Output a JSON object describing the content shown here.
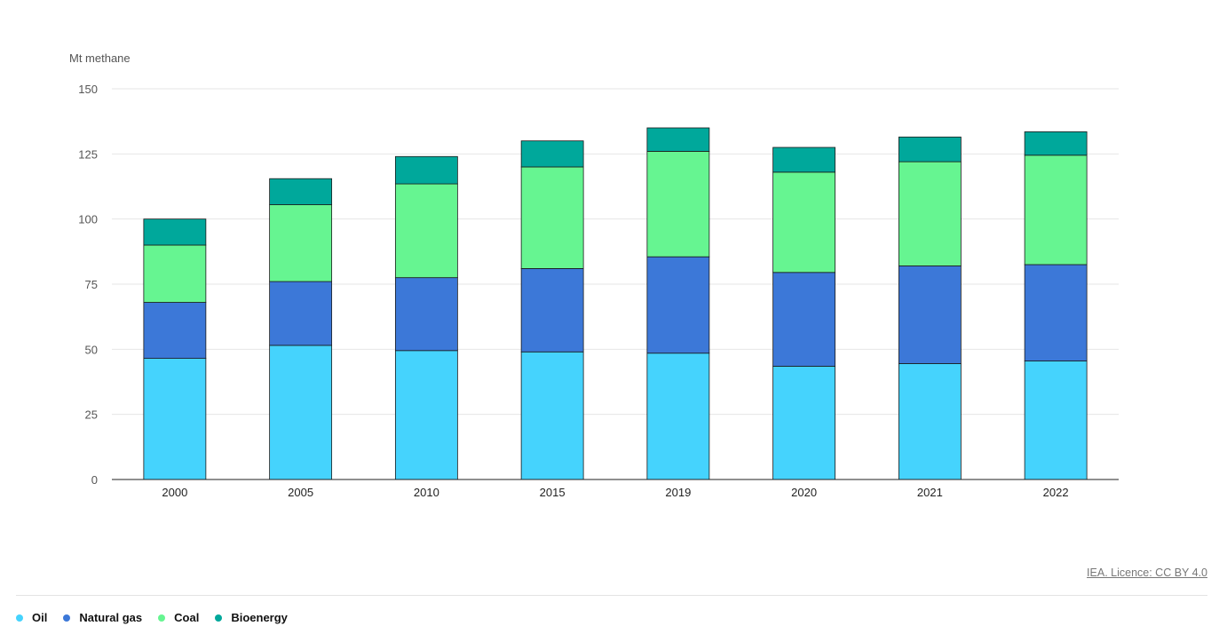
{
  "source": "IEA. Licence: CC BY 4.0",
  "chart_data": {
    "type": "bar",
    "stacked": true,
    "title": "",
    "ylabel": "Mt methane",
    "xlabel": "",
    "ylim": [
      0,
      150
    ],
    "yticks": [
      0,
      25,
      50,
      75,
      100,
      125,
      150
    ],
    "grid": true,
    "legend_position": "bottom-left",
    "categories": [
      "2000",
      "2005",
      "2010",
      "2015",
      "2019",
      "2020",
      "2021",
      "2022"
    ],
    "series": [
      {
        "name": "Oil",
        "color": "#45d3fd",
        "values": [
          46.5,
          51.5,
          49.5,
          49,
          48.5,
          43.5,
          44.5,
          45.5
        ]
      },
      {
        "name": "Natural gas",
        "color": "#3c78d8",
        "values": [
          21.5,
          24.5,
          28,
          32,
          37,
          36,
          37.5,
          37
        ]
      },
      {
        "name": "Coal",
        "color": "#66f591",
        "values": [
          22,
          29.5,
          36,
          39,
          40.5,
          38.5,
          40,
          42
        ]
      },
      {
        "name": "Bioenergy",
        "color": "#00a89b",
        "values": [
          10,
          10,
          10.5,
          10,
          9,
          9.5,
          9.5,
          9
        ]
      }
    ]
  }
}
